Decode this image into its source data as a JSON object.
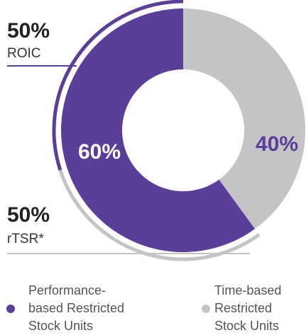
{
  "chart_data": {
    "type": "donut",
    "categories": [
      [
        "Performance-",
        "based Restricted",
        "Stock Units"
      ],
      [
        "Time-based",
        "Restricted",
        "Stock Units"
      ]
    ],
    "values": [
      60,
      40
    ],
    "value_labels": [
      "60%",
      "40%"
    ],
    "colors": [
      "#5b3e9a",
      "#c4c4c6"
    ],
    "breakdown": {
      "labels": [
        "ROIC",
        "rTSR*"
      ],
      "values": [
        50,
        50
      ],
      "value_labels": [
        "50%",
        "50%"
      ],
      "colors": [
        "#5b3e9a",
        "#c4c4c6"
      ]
    }
  }
}
